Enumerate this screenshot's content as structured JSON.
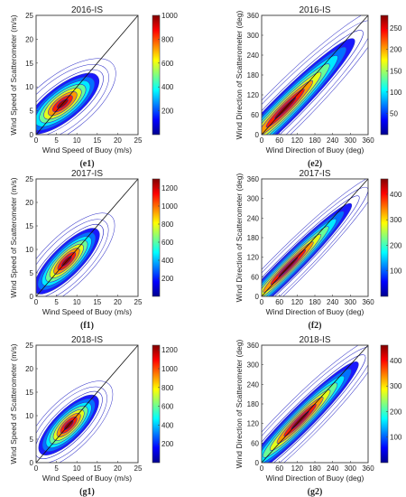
{
  "palette": [
    "#00008f",
    "#0000ff",
    "#0080ff",
    "#00ffff",
    "#80ff80",
    "#ffff00",
    "#ff8000",
    "#ff0000",
    "#800000"
  ],
  "contour_color": "#3030c8",
  "chart_data": [
    {
      "type": "heatmap",
      "title": "2016-IS",
      "caption": "(e1)",
      "xlabel": "Wind Speed of Buoy (m/s)",
      "ylabel": "Wind Speed of Scatterometer (m/s)",
      "xlim": [
        0,
        25
      ],
      "ylim": [
        0,
        25
      ],
      "xticks": [
        0,
        5,
        10,
        15,
        20,
        25
      ],
      "yticks": [
        0,
        5,
        10,
        15,
        20,
        25
      ],
      "colorbar": {
        "min": 0,
        "max": 1000,
        "ticks": [
          200,
          400,
          600,
          800,
          1000
        ]
      },
      "identity_line": true,
      "density_peak": {
        "x": 6.5,
        "y": 6.5,
        "value": 1000
      },
      "density_spread": {
        "along": 4.2,
        "across": 1.6,
        "angle_deg": 38
      }
    },
    {
      "type": "heatmap",
      "title": "2016-IS",
      "caption": "(e2)",
      "xlabel": "Wind Direction of Buoy (deg)",
      "ylabel": "Wind Direction of Scatterometer (deg)",
      "xlim": [
        0,
        360
      ],
      "ylim": [
        0,
        360
      ],
      "xticks": [
        0,
        60,
        120,
        180,
        240,
        300,
        360
      ],
      "yticks": [
        0,
        60,
        120,
        180,
        240,
        300,
        360
      ],
      "colorbar": {
        "min": 0,
        "max": 280,
        "ticks": [
          50,
          100,
          150,
          200,
          250
        ]
      },
      "identity_line": true,
      "density_peak": {
        "x": 80,
        "y": 80,
        "value": 280
      },
      "density_spread": {
        "along": 130,
        "across": 18,
        "angle_deg": 45
      }
    },
    {
      "type": "heatmap",
      "title": "2017-IS",
      "caption": "(f1)",
      "xlabel": "Wind Speed of Buoy (m/s)",
      "ylabel": "Wind Speed of Scatterometer (m/s)",
      "xlim": [
        0,
        25
      ],
      "ylim": [
        0,
        25
      ],
      "xticks": [
        0,
        5,
        10,
        15,
        20,
        25
      ],
      "yticks": [
        0,
        5,
        10,
        15,
        20,
        25
      ],
      "colorbar": {
        "min": 0,
        "max": 1300,
        "ticks": [
          200,
          400,
          600,
          800,
          1000,
          1200
        ]
      },
      "identity_line": true,
      "density_peak": {
        "x": 7.5,
        "y": 7.5,
        "value": 1300
      },
      "density_spread": {
        "along": 4.2,
        "across": 1.4,
        "angle_deg": 45
      }
    },
    {
      "type": "heatmap",
      "title": "2017-IS",
      "caption": "(f2)",
      "xlabel": "Wind Direction of Buoy (deg)",
      "ylabel": "Wind Direction of Scatterometer (deg)",
      "xlim": [
        0,
        360
      ],
      "ylim": [
        0,
        360
      ],
      "xticks": [
        0,
        60,
        120,
        180,
        240,
        300,
        360
      ],
      "yticks": [
        0,
        60,
        120,
        180,
        240,
        300,
        360
      ],
      "colorbar": {
        "min": 0,
        "max": 460,
        "ticks": [
          100,
          200,
          300,
          400
        ]
      },
      "identity_line": true,
      "density_peak": {
        "x": 90,
        "y": 90,
        "value": 460
      },
      "density_spread": {
        "along": 120,
        "across": 14,
        "angle_deg": 45
      }
    },
    {
      "type": "heatmap",
      "title": "2018-IS",
      "caption": "(g1)",
      "xlabel": "Wind Speed of Buoy (m/s)",
      "ylabel": "Wind Speed of Scatterometer (m/s)",
      "xlim": [
        0,
        25
      ],
      "ylim": [
        0,
        25
      ],
      "xticks": [
        0,
        5,
        10,
        15,
        20,
        25
      ],
      "yticks": [
        0,
        5,
        10,
        15,
        20,
        25
      ],
      "colorbar": {
        "min": 0,
        "max": 1250,
        "ticks": [
          200,
          400,
          600,
          800,
          1000,
          1200
        ]
      },
      "identity_line": true,
      "density_peak": {
        "x": 8,
        "y": 8,
        "value": 1250
      },
      "density_spread": {
        "along": 3.8,
        "across": 1.4,
        "angle_deg": 45
      }
    },
    {
      "type": "heatmap",
      "title": "2018-IS",
      "caption": "(g2)",
      "xlabel": "Wind Direction of Buoy (deg)",
      "ylabel": "Wind Direction of Scatterometer (deg)",
      "xlim": [
        0,
        360
      ],
      "ylim": [
        0,
        360
      ],
      "xticks": [
        0,
        60,
        120,
        180,
        240,
        300,
        360
      ],
      "yticks": [
        0,
        60,
        120,
        180,
        240,
        300,
        360
      ],
      "colorbar": {
        "min": 0,
        "max": 460,
        "ticks": [
          100,
          200,
          300,
          400
        ]
      },
      "identity_line": true,
      "density_peak": {
        "x": 130,
        "y": 130,
        "value": 460
      },
      "density_spread": {
        "along": 110,
        "across": 16,
        "angle_deg": 45
      }
    }
  ]
}
